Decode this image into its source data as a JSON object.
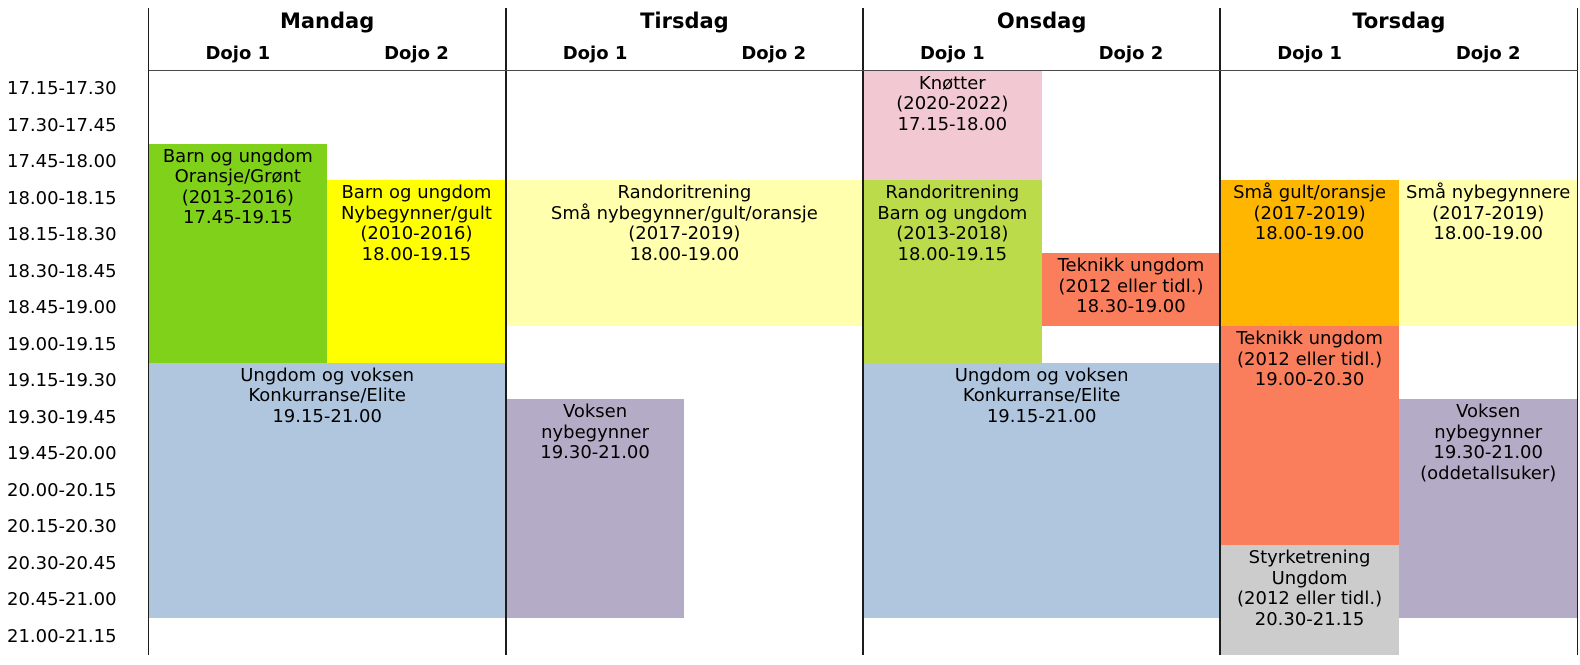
{
  "schedule": {
    "time_slots": [
      "17.15-17.30",
      "17.30-17.45",
      "17.45-18.00",
      "18.00-18.15",
      "18.15-18.30",
      "18.30-18.45",
      "18.45-19.00",
      "19.00-19.15",
      "19.15-19.30",
      "19.30-19.45",
      "19.45-20.00",
      "20.00-20.15",
      "20.15-20.30",
      "20.30-20.45",
      "20.45-21.00",
      "21.00-21.15"
    ],
    "days": [
      {
        "name": "Mandag",
        "dojos": [
          "Dojo 1",
          "Dojo 2"
        ]
      },
      {
        "name": "Tirsdag",
        "dojos": [
          "Dojo 1",
          "Dojo 2"
        ]
      },
      {
        "name": "Onsdag",
        "dojos": [
          "Dojo 1",
          "Dojo 2"
        ]
      },
      {
        "name": "Torsdag",
        "dojos": [
          "Dojo 1",
          "Dojo 2"
        ]
      }
    ],
    "colors": {
      "green": "#80d11a",
      "yellow": "#ffff00",
      "steel_blue": "#b0c6de",
      "pale_yellow": "#ffffad",
      "lavender": "#b4acc6",
      "pink": "#f2c8d2",
      "yellow_green": "#bcdb4a",
      "salmon": "#fa7e5c",
      "orange": "#ffb600",
      "gray": "#cccccc"
    },
    "events": [
      {
        "day": 0,
        "dojo": "dojo1",
        "start": "17.45",
        "end": "19.15",
        "color": "#80d11a",
        "lines": [
          "Barn og ungdom",
          "Oransje/Grønt",
          "(2013-2016)",
          "17.45-19.15"
        ]
      },
      {
        "day": 0,
        "dojo": "dojo2",
        "start": "18.00",
        "end": "19.15",
        "color": "#ffff00",
        "lines": [
          "Barn og ungdom",
          "Nybegynner/gult",
          "(2010-2016)",
          "18.00-19.15"
        ]
      },
      {
        "day": 0,
        "dojo": "both",
        "start": "19.15",
        "end": "21.00",
        "color": "#b0c6de",
        "lines": [
          "Ungdom og voksen",
          "Konkurranse/Elite",
          "19.15-21.00"
        ]
      },
      {
        "day": 1,
        "dojo": "both",
        "start": "18.00",
        "end": "19.00",
        "color": "#ffffad",
        "lines": [
          "Randoritrening",
          "Små nybegynner/gult/oransje",
          "(2017-2019)",
          "18.00-19.00"
        ]
      },
      {
        "day": 1,
        "dojo": "dojo1",
        "start": "19.30",
        "end": "21.00",
        "color": "#b4acc6",
        "lines": [
          "Voksen",
          "nybegynner",
          "19.30-21.00"
        ]
      },
      {
        "day": 2,
        "dojo": "dojo1",
        "start": "17.15",
        "end": "18.00",
        "color": "#f2c8d2",
        "lines": [
          "Knøtter",
          "(2020-2022)",
          "17.15-18.00"
        ]
      },
      {
        "day": 2,
        "dojo": "dojo1",
        "start": "18.00",
        "end": "19.15",
        "color": "#bcdb4a",
        "lines": [
          "Randoritrening",
          "Barn og ungdom",
          "(2013-2018)",
          "18.00-19.15"
        ]
      },
      {
        "day": 2,
        "dojo": "dojo2",
        "start": "18.30",
        "end": "19.00",
        "color": "#fa7e5c",
        "lines": [
          "Teknikk ungdom",
          "(2012 eller tidl.)",
          "18.30-19.00"
        ]
      },
      {
        "day": 2,
        "dojo": "both",
        "start": "19.15",
        "end": "21.00",
        "color": "#b0c6de",
        "lines": [
          "Ungdom og voksen",
          "Konkurranse/Elite",
          "19.15-21.00"
        ]
      },
      {
        "day": 3,
        "dojo": "dojo1",
        "start": "18.00",
        "end": "19.00",
        "color": "#ffb600",
        "lines": [
          "Små gult/oransje",
          "(2017-2019)",
          "18.00-19.00"
        ]
      },
      {
        "day": 3,
        "dojo": "dojo2",
        "start": "18.00",
        "end": "19.00",
        "color": "#ffffad",
        "lines": [
          "Små nybegynnere",
          "(2017-2019)",
          "18.00-19.00"
        ]
      },
      {
        "day": 3,
        "dojo": "dojo1",
        "start": "19.00",
        "end": "20.30",
        "color": "#fa7e5c",
        "lines": [
          "Teknikk ungdom",
          "(2012 eller tidl.)",
          "19.00-20.30"
        ]
      },
      {
        "day": 3,
        "dojo": "dojo2",
        "start": "19.30",
        "end": "21.00",
        "color": "#b4acc6",
        "lines": [
          "Voksen",
          "nybegynner",
          "19.30-21.00",
          "(oddetallsuker)"
        ]
      },
      {
        "day": 3,
        "dojo": "dojo1",
        "start": "20.30",
        "end": "21.15",
        "color": "#cccccc",
        "lines": [
          "Styrketrening",
          "Ungdom",
          "(2012 eller tidl.)",
          "20.30-21.15"
        ]
      }
    ]
  }
}
